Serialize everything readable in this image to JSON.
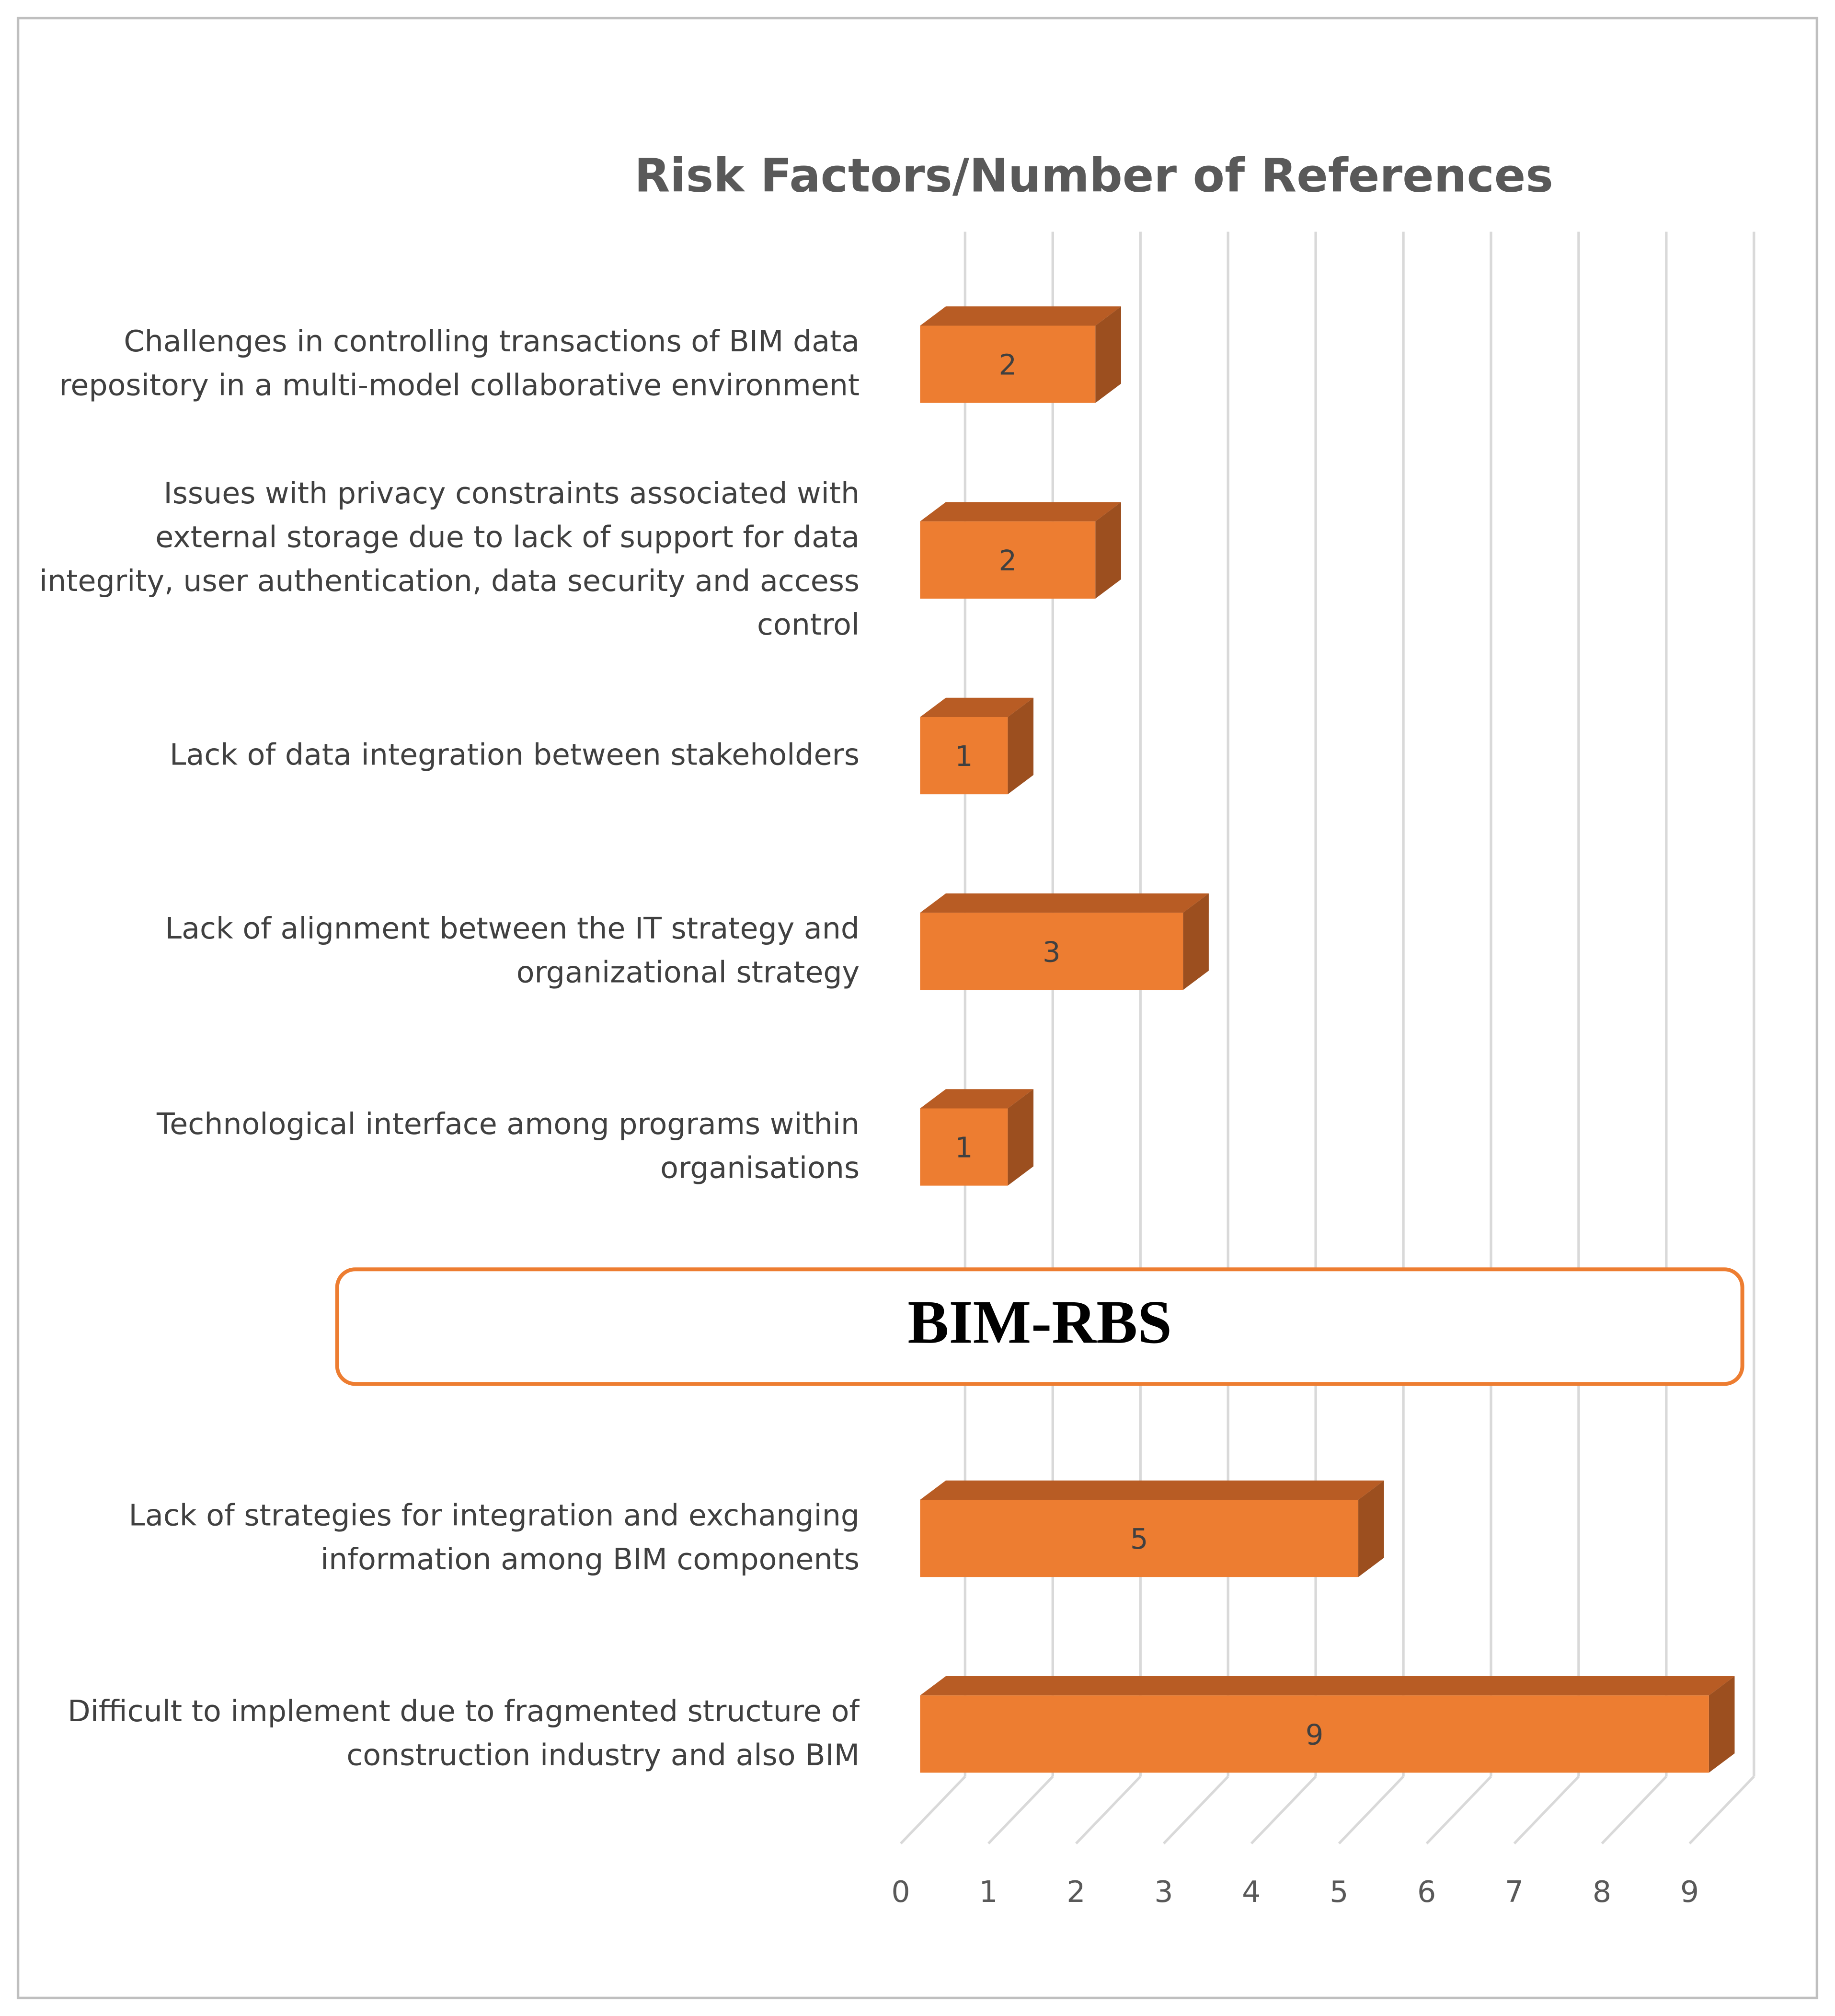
{
  "chart_data": {
    "type": "bar3d",
    "orientation": "horizontal",
    "title": "Risk Factors/Number of References",
    "annotation": "BIM-RBS",
    "categories": [
      "Challenges in controlling transactions of BIM data repository in a multi-model collaborative environment",
      "Issues with privacy constraints associated with external storage due to lack of support for data integrity, user authentication, data security and access control",
      "Lack of data integration between stakeholders",
      "Lack of alignment between the IT strategy and organizational strategy",
      "Technological interface among programs within organisations",
      null,
      "Lack of strategies for integration and exchanging information among BIM components",
      "Difficult to implement due to fragmented structure of construction industry and also BIM"
    ],
    "values": [
      2,
      2,
      1,
      3,
      1,
      null,
      5,
      9
    ],
    "color": "#ed7d31",
    "xlim": [
      0,
      9
    ],
    "xticks": [
      0,
      1,
      2,
      3,
      4,
      5,
      6,
      7,
      8,
      9
    ],
    "grid": true
  }
}
